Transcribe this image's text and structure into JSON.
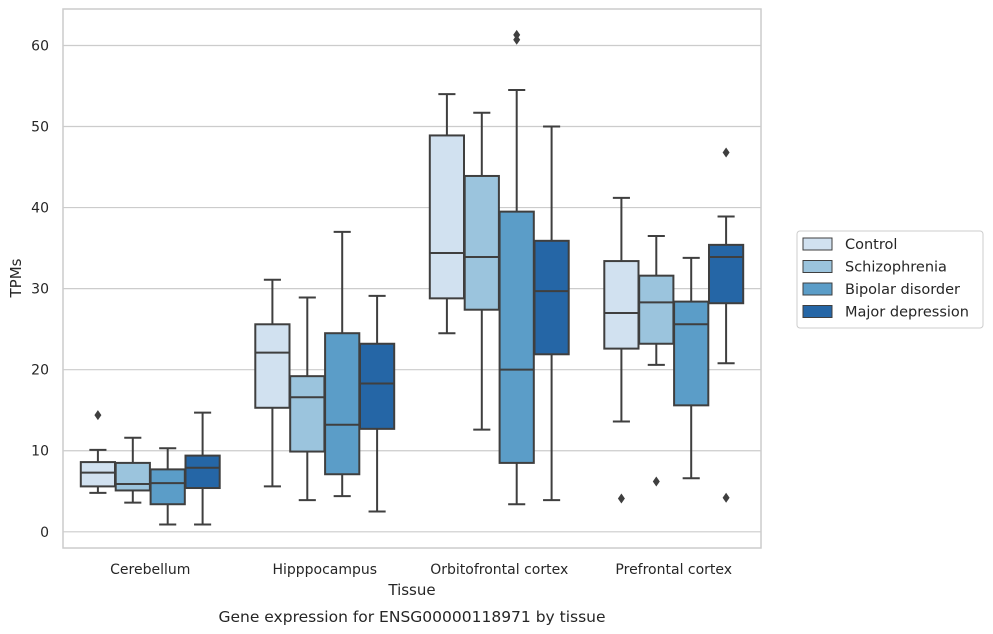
{
  "caption": "Gene expression for ENSG00000118971 by tissue",
  "chart_data": {
    "type": "box",
    "xlabel": "Tissue",
    "ylabel": "TPMs",
    "ylim": [
      -2,
      64.5
    ],
    "yticks": [
      0,
      10,
      20,
      30,
      40,
      50,
      60
    ],
    "grid": "horizontal",
    "legend_position": "right",
    "categories": [
      "Cerebellum",
      "Hipppocampus",
      "Orbitofrontal cortex",
      "Prefrontal cortex"
    ],
    "series": [
      {
        "name": "Control",
        "color": "#d1e1f0",
        "boxes": [
          {
            "whislo": 4.8,
            "q1": 5.6,
            "med": 7.3,
            "q3": 8.6,
            "whishi": 10.1,
            "fliers": [
              14.4
            ]
          },
          {
            "whislo": 5.6,
            "q1": 15.3,
            "med": 22.1,
            "q3": 25.6,
            "whishi": 31.1,
            "fliers": []
          },
          {
            "whislo": 24.5,
            "q1": 28.8,
            "med": 34.4,
            "q3": 48.9,
            "whishi": 54.0,
            "fliers": []
          },
          {
            "whislo": 13.6,
            "q1": 22.6,
            "med": 27.0,
            "q3": 33.4,
            "whishi": 41.2,
            "fliers": [
              4.1
            ]
          }
        ]
      },
      {
        "name": "Schizophrenia",
        "color": "#9bc4dd",
        "boxes": [
          {
            "whislo": 3.6,
            "q1": 5.1,
            "med": 5.9,
            "q3": 8.5,
            "whishi": 11.6,
            "fliers": []
          },
          {
            "whislo": 3.9,
            "q1": 9.9,
            "med": 16.6,
            "q3": 19.2,
            "whishi": 28.9,
            "fliers": []
          },
          {
            "whislo": 12.6,
            "q1": 27.4,
            "med": 33.9,
            "q3": 43.9,
            "whishi": 51.7,
            "fliers": []
          },
          {
            "whislo": 20.6,
            "q1": 23.2,
            "med": 28.3,
            "q3": 31.6,
            "whishi": 36.5,
            "fliers": [
              6.2
            ]
          }
        ]
      },
      {
        "name": "Bipolar disorder",
        "color": "#5b9dc8",
        "boxes": [
          {
            "whislo": 0.9,
            "q1": 3.4,
            "med": 6.0,
            "q3": 7.7,
            "whishi": 10.3,
            "fliers": []
          },
          {
            "whislo": 4.4,
            "q1": 7.1,
            "med": 13.2,
            "q3": 24.5,
            "whishi": 37.0,
            "fliers": []
          },
          {
            "whislo": 3.4,
            "q1": 8.5,
            "med": 20.0,
            "q3": 39.5,
            "whishi": 54.5,
            "fliers": [
              60.7,
              61.3
            ]
          },
          {
            "whislo": 6.6,
            "q1": 15.6,
            "med": 25.6,
            "q3": 28.4,
            "whishi": 33.8,
            "fliers": []
          }
        ]
      },
      {
        "name": "Major depression",
        "color": "#2566a6",
        "boxes": [
          {
            "whislo": 0.9,
            "q1": 5.4,
            "med": 7.9,
            "q3": 9.4,
            "whishi": 14.7,
            "fliers": []
          },
          {
            "whislo": 2.5,
            "q1": 12.7,
            "med": 18.3,
            "q3": 23.2,
            "whishi": 29.1,
            "fliers": []
          },
          {
            "whislo": 3.9,
            "q1": 21.9,
            "med": 29.7,
            "q3": 35.9,
            "whishi": 50.0,
            "fliers": []
          },
          {
            "whislo": 20.8,
            "q1": 28.2,
            "med": 33.9,
            "q3": 35.4,
            "whishi": 38.9,
            "fliers": [
              4.2,
              46.8
            ]
          }
        ]
      }
    ]
  }
}
